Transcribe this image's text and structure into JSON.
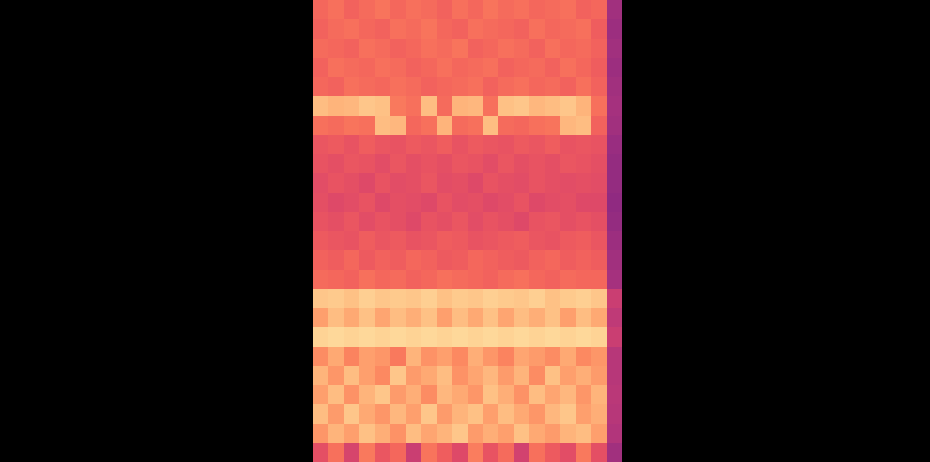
{
  "chart_data": {
    "type": "heatmap",
    "tick_labels": false,
    "color": "magma",
    "zlim": [
      0,
      100
    ],
    "values": [
      [
        68,
        70,
        67,
        69,
        71,
        68,
        70,
        69,
        67,
        70,
        68,
        71,
        69,
        70,
        68,
        69,
        70,
        67,
        68,
        45
      ],
      [
        67,
        69,
        70,
        68,
        67,
        70,
        69,
        71,
        68,
        67,
        70,
        69,
        68,
        67,
        70,
        68,
        69,
        70,
        66,
        44
      ],
      [
        69,
        68,
        67,
        70,
        69,
        67,
        68,
        70,
        69,
        71,
        67,
        68,
        70,
        69,
        67,
        70,
        68,
        69,
        67,
        45
      ],
      [
        67,
        70,
        69,
        68,
        70,
        69,
        67,
        68,
        70,
        68,
        69,
        70,
        67,
        68,
        69,
        67,
        70,
        68,
        66,
        44
      ],
      [
        68,
        67,
        70,
        69,
        68,
        70,
        69,
        67,
        68,
        69,
        70,
        67,
        69,
        70,
        68,
        69,
        67,
        70,
        67,
        45
      ],
      [
        86,
        84,
        85,
        88,
        87,
        72,
        70,
        86,
        69,
        84,
        85,
        70,
        87,
        88,
        85,
        86,
        88,
        84,
        70,
        46
      ],
      [
        70,
        69,
        71,
        70,
        86,
        85,
        68,
        70,
        84,
        69,
        70,
        86,
        69,
        68,
        70,
        71,
        85,
        86,
        67,
        45
      ],
      [
        64,
        65,
        63,
        66,
        64,
        63,
        65,
        64,
        66,
        63,
        65,
        64,
        63,
        65,
        64,
        66,
        63,
        64,
        63,
        43
      ],
      [
        63,
        62,
        64,
        63,
        61,
        64,
        62,
        63,
        62,
        64,
        63,
        61,
        64,
        62,
        63,
        62,
        64,
        63,
        62,
        42
      ],
      [
        61,
        63,
        62,
        60,
        63,
        61,
        62,
        64,
        61,
        62,
        60,
        63,
        62,
        61,
        63,
        62,
        61,
        62,
        61,
        42
      ],
      [
        62,
        60,
        61,
        63,
        60,
        62,
        61,
        60,
        63,
        61,
        62,
        60,
        61,
        63,
        60,
        61,
        62,
        60,
        60,
        41
      ],
      [
        63,
        62,
        64,
        61,
        63,
        62,
        60,
        63,
        62,
        64,
        61,
        63,
        62,
        60,
        63,
        64,
        62,
        63,
        62,
        42
      ],
      [
        65,
        64,
        63,
        66,
        64,
        65,
        63,
        64,
        66,
        65,
        63,
        64,
        65,
        66,
        64,
        63,
        65,
        66,
        64,
        44
      ],
      [
        67,
        66,
        68,
        65,
        67,
        66,
        68,
        67,
        65,
        66,
        68,
        67,
        66,
        65,
        67,
        68,
        66,
        67,
        66,
        45
      ],
      [
        69,
        68,
        67,
        70,
        68,
        69,
        67,
        68,
        70,
        69,
        68,
        67,
        69,
        70,
        68,
        67,
        69,
        68,
        68,
        46
      ],
      [
        88,
        89,
        87,
        90,
        88,
        89,
        88,
        90,
        87,
        89,
        88,
        90,
        89,
        88,
        90,
        87,
        89,
        90,
        88,
        55
      ],
      [
        80,
        86,
        82,
        87,
        81,
        86,
        83,
        87,
        80,
        86,
        82,
        87,
        81,
        86,
        83,
        87,
        80,
        86,
        82,
        52
      ],
      [
        91,
        92,
        91,
        92,
        91,
        92,
        91,
        92,
        91,
        92,
        91,
        92,
        91,
        92,
        91,
        92,
        91,
        92,
        91,
        55
      ],
      [
        76,
        82,
        74,
        80,
        78,
        72,
        84,
        77,
        80,
        75,
        83,
        78,
        74,
        81,
        79,
        76,
        82,
        75,
        78,
        50
      ],
      [
        84,
        78,
        86,
        80,
        75,
        88,
        79,
        82,
        86,
        77,
        81,
        85,
        79,
        84,
        76,
        87,
        80,
        83,
        79,
        50
      ],
      [
        80,
        86,
        77,
        84,
        88,
        79,
        83,
        76,
        85,
        82,
        78,
        87,
        83,
        77,
        86,
        81,
        85,
        78,
        84,
        51
      ],
      [
        86,
        79,
        88,
        82,
        78,
        85,
        80,
        88,
        79,
        84,
        87,
        80,
        86,
        82,
        78,
        85,
        88,
        80,
        83,
        50
      ],
      [
        78,
        84,
        80,
        87,
        83,
        77,
        86,
        81,
        84,
        88,
        79,
        83,
        80,
        87,
        82,
        79,
        84,
        86,
        80,
        49
      ],
      [
        62,
        70,
        58,
        72,
        64,
        68,
        55,
        71,
        66,
        60,
        73,
        63,
        69,
        57,
        70,
        65,
        61,
        72,
        62,
        45
      ]
    ]
  }
}
